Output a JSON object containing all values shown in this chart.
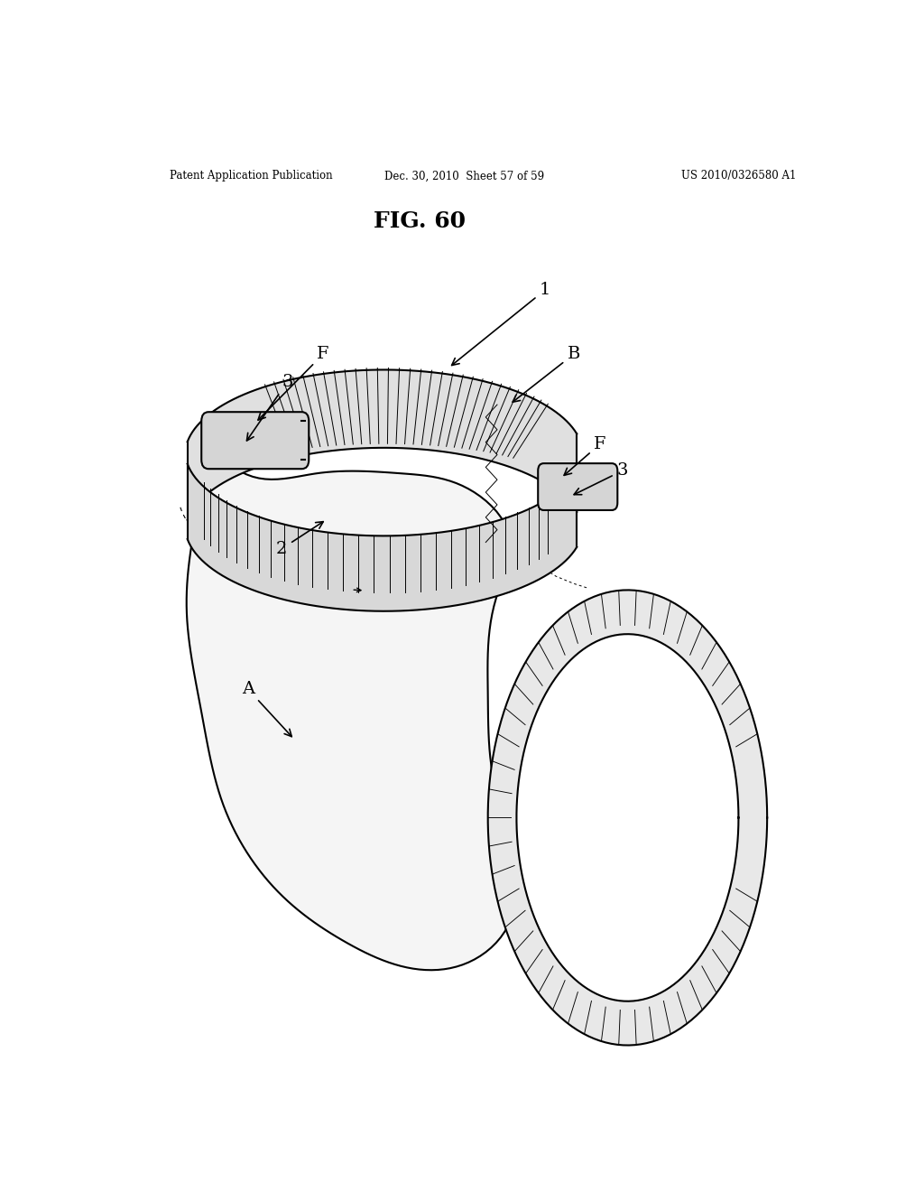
{
  "background_color": "#ffffff",
  "header_left": "Patent Application Publication",
  "header_center": "Dec. 30, 2010  Sheet 57 of 59",
  "header_right": "US 2010/0326580 A1",
  "fig_title": "FIG. 60",
  "lw_main": 1.5,
  "lw_thin": 0.7,
  "label_fontsize": 13,
  "gray_band": "#e0e0e0",
  "gray_face": "#d8d8d8",
  "gray_light": "#eeeeee"
}
